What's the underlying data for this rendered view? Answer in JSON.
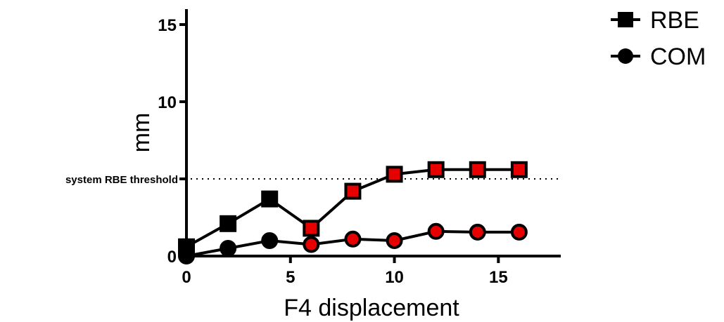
{
  "chart_data": {
    "type": "line",
    "xlabel": "F4 displacement",
    "ylabel": "mm",
    "xlim": [
      0,
      18
    ],
    "ylim": [
      0,
      16
    ],
    "xticks": [
      0,
      5,
      10,
      15
    ],
    "yticks": [
      0,
      5,
      10,
      15
    ],
    "xtick_labels": [
      "0",
      "5",
      "10",
      "15"
    ],
    "ytick_labels": [
      "0",
      "",
      "10",
      "15"
    ],
    "grid": false,
    "legend_position": "top-right",
    "threshold": {
      "value": 5,
      "label": "system RBE threshold",
      "style": "dotted"
    },
    "highlight_color": "#e60000",
    "line_color": "#000000",
    "series": [
      {
        "name": "RBE",
        "marker": "square",
        "x": [
          0,
          2,
          4,
          6,
          8,
          10,
          12,
          14,
          16
        ],
        "y": [
          0.6,
          2.1,
          3.7,
          1.8,
          4.2,
          5.3,
          5.6,
          5.6,
          5.6
        ],
        "highlighted": [
          false,
          false,
          false,
          true,
          true,
          true,
          true,
          true,
          true
        ]
      },
      {
        "name": "COM",
        "marker": "circle",
        "x": [
          0,
          2,
          4,
          6,
          8,
          10,
          12,
          14,
          16
        ],
        "y": [
          0.0,
          0.5,
          1.0,
          0.75,
          1.1,
          1.0,
          1.6,
          1.55,
          1.55
        ],
        "highlighted": [
          false,
          false,
          false,
          true,
          true,
          true,
          true,
          true,
          true
        ]
      }
    ]
  }
}
